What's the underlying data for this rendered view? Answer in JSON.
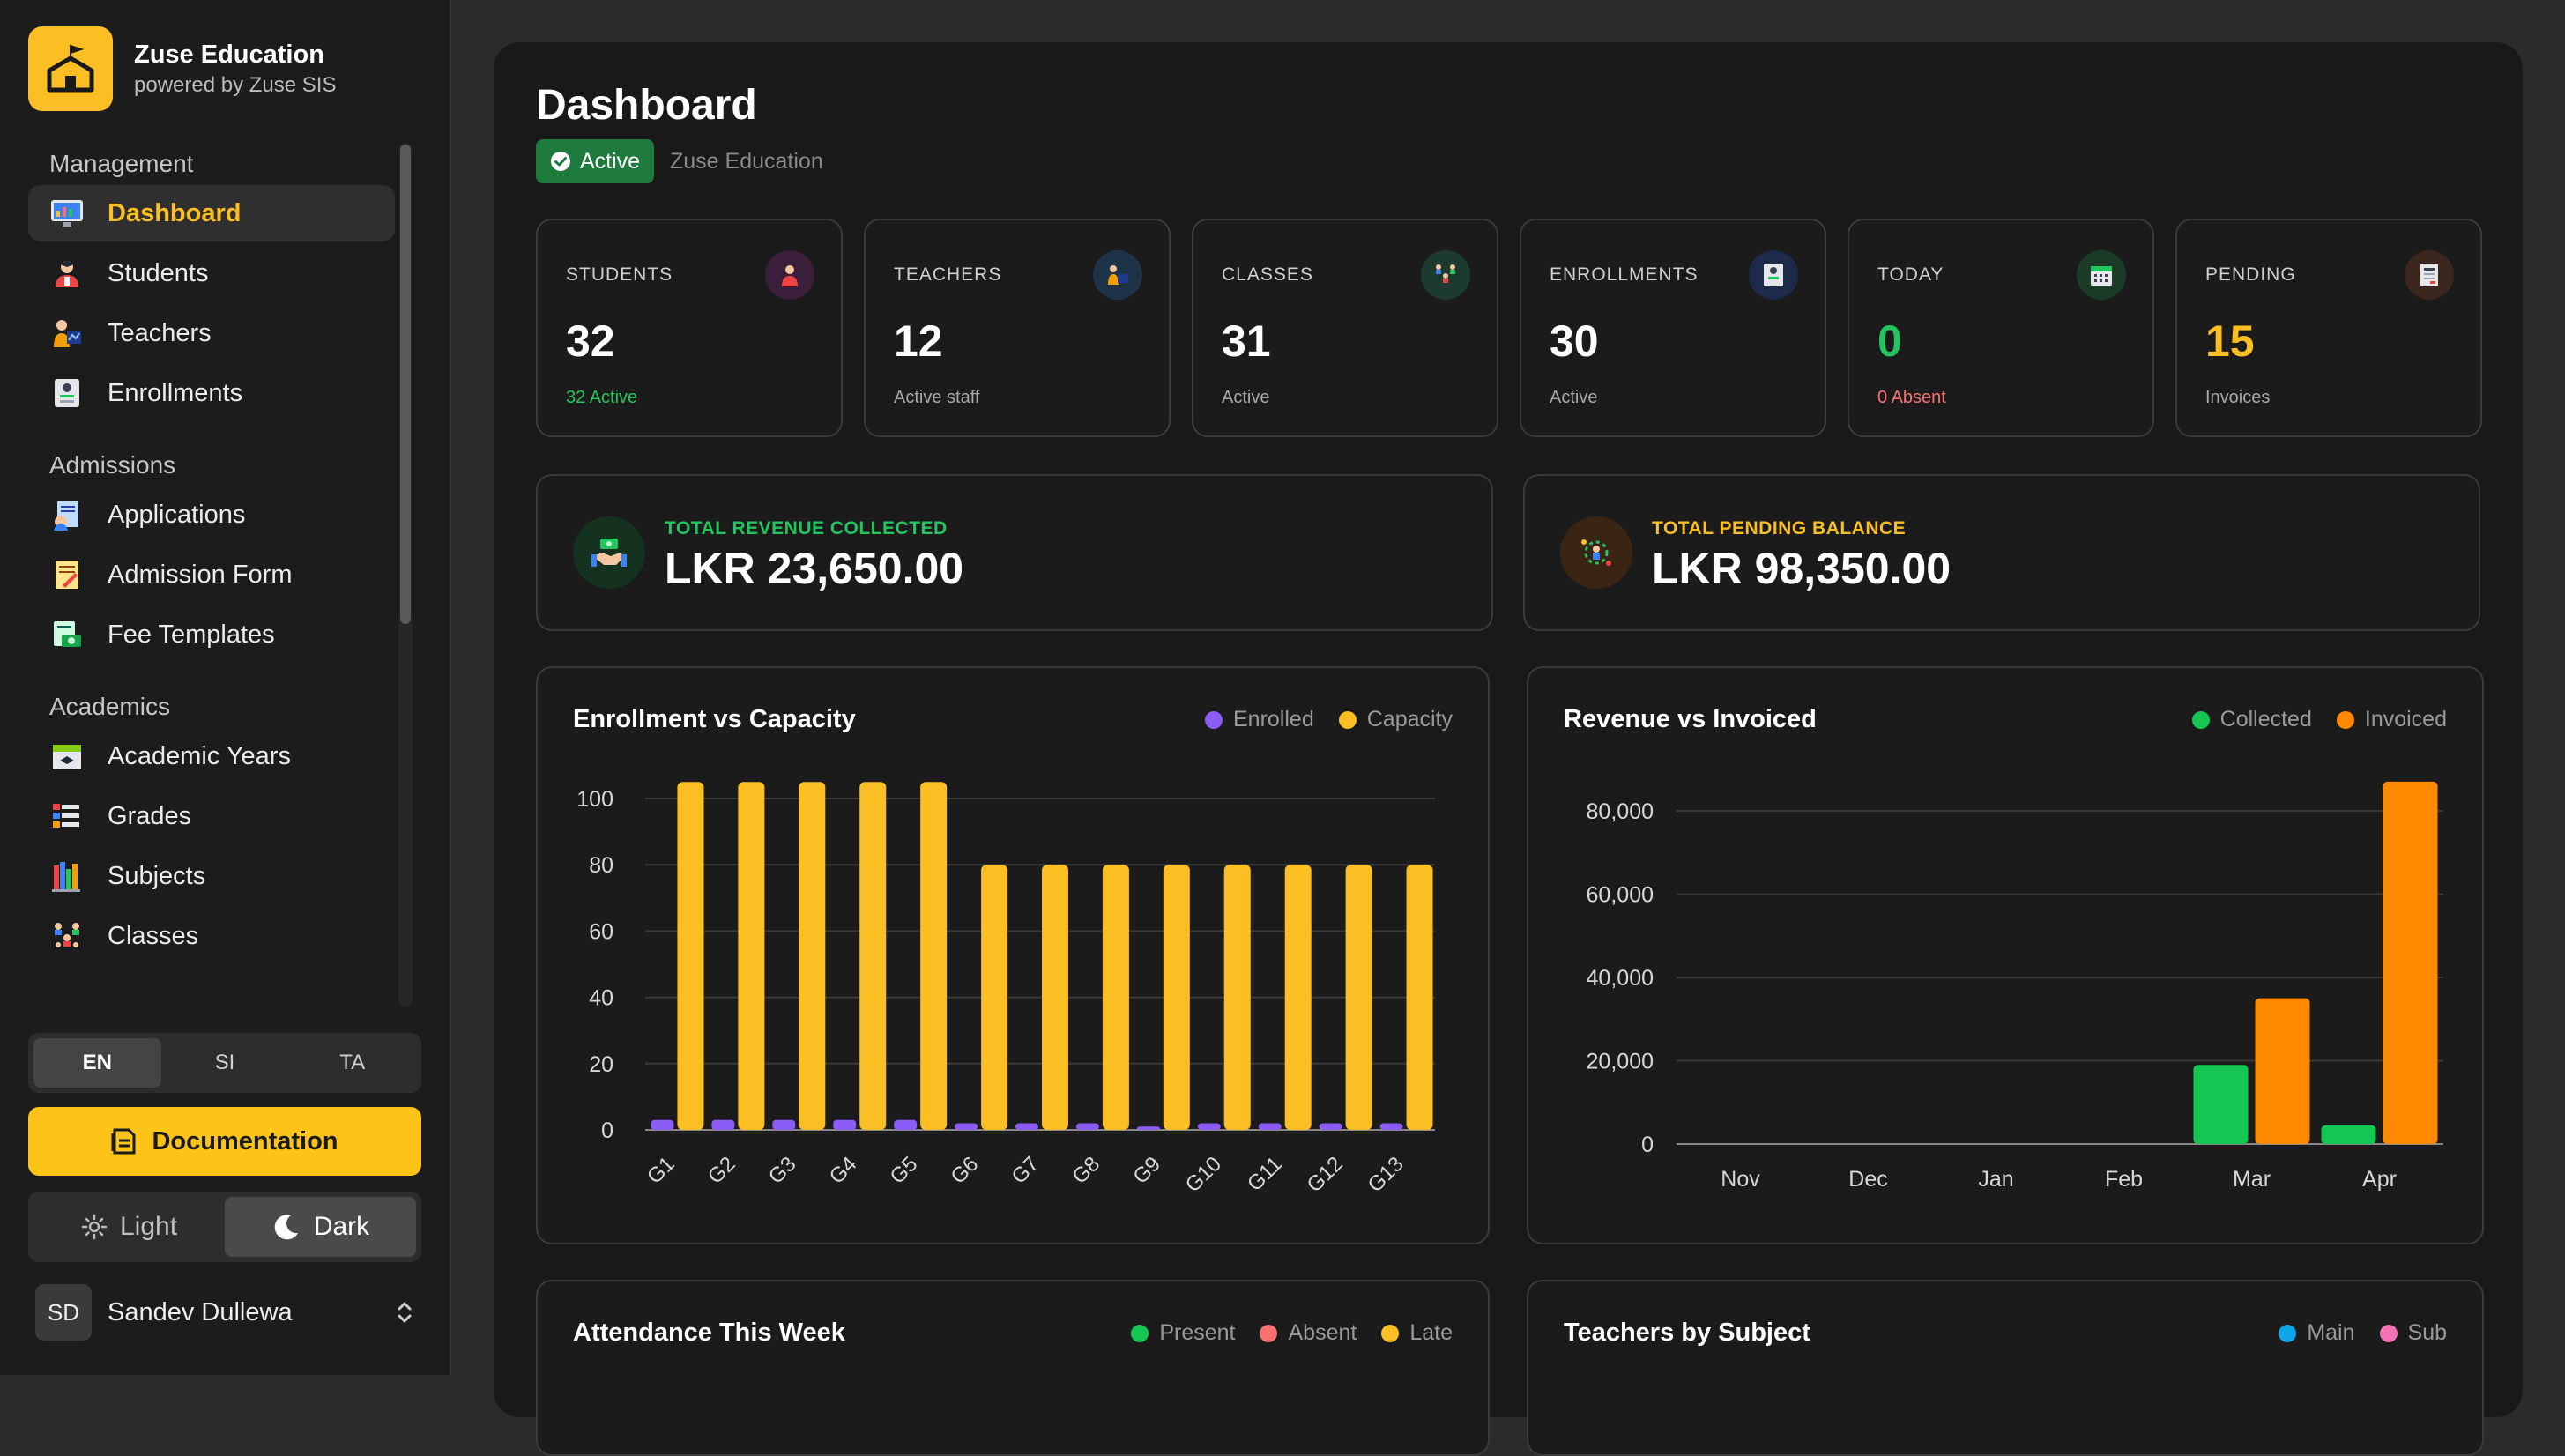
{
  "brand": {
    "name": "Zuse Education",
    "sub": "powered by Zuse SIS"
  },
  "nav": {
    "sections": [
      {
        "title": "Management",
        "items": [
          {
            "label": "Dashboard",
            "icon": "dashboard-icon",
            "active": true
          },
          {
            "label": "Students",
            "icon": "students-icon"
          },
          {
            "label": "Teachers",
            "icon": "teachers-icon"
          },
          {
            "label": "Enrollments",
            "icon": "enrollments-icon"
          }
        ]
      },
      {
        "title": "Admissions",
        "items": [
          {
            "label": "Applications",
            "icon": "applications-icon"
          },
          {
            "label": "Admission Form",
            "icon": "admission-form-icon"
          },
          {
            "label": "Fee Templates",
            "icon": "fee-templates-icon"
          }
        ]
      },
      {
        "title": "Academics",
        "items": [
          {
            "label": "Academic Years",
            "icon": "academic-years-icon"
          },
          {
            "label": "Grades",
            "icon": "grades-icon"
          },
          {
            "label": "Subjects",
            "icon": "subjects-icon"
          },
          {
            "label": "Classes",
            "icon": "classes-icon"
          }
        ]
      }
    ]
  },
  "lang": {
    "options": [
      "EN",
      "SI",
      "TA"
    ],
    "selected": "EN"
  },
  "documentation_label": "Documentation",
  "theme": {
    "light": "Light",
    "dark": "Dark",
    "selected": "Dark"
  },
  "user": {
    "initials": "SD",
    "name": "Sandev Dullewa"
  },
  "page": {
    "title": "Dashboard",
    "status": "Active",
    "org": "Zuse Education"
  },
  "stats": [
    {
      "label": "STUDENTS",
      "value": "32",
      "sub": "32 Active",
      "sub_color": "#22c55e",
      "value_color": "#ffffff",
      "icon": "students-stat-icon"
    },
    {
      "label": "TEACHERS",
      "value": "12",
      "sub": "Active staff",
      "sub_color": "#a8a8a8",
      "value_color": "#ffffff",
      "icon": "teachers-stat-icon"
    },
    {
      "label": "CLASSES",
      "value": "31",
      "sub": "Active",
      "sub_color": "#a8a8a8",
      "value_color": "#ffffff",
      "icon": "classes-stat-icon"
    },
    {
      "label": "ENROLLMENTS",
      "value": "30",
      "sub": "Active",
      "sub_color": "#a8a8a8",
      "value_color": "#ffffff",
      "icon": "enrollments-stat-icon"
    },
    {
      "label": "TODAY",
      "value": "0",
      "sub": "0 Absent",
      "sub_color": "#f87171",
      "value_color": "#22c55e",
      "icon": "calendar-icon"
    },
    {
      "label": "PENDING",
      "value": "15",
      "sub": "Invoices",
      "sub_color": "#a8a8a8",
      "value_color": "#fbbf24",
      "icon": "invoice-icon"
    }
  ],
  "finance": {
    "collected": {
      "label": "TOTAL REVENUE COLLECTED",
      "value": "LKR 23,650.00",
      "color": "#22c55e"
    },
    "pending": {
      "label": "TOTAL PENDING BALANCE",
      "value": "LKR 98,350.00",
      "color": "#fbbf24"
    }
  },
  "charts": {
    "enrollment": {
      "title": "Enrollment vs Capacity",
      "legend": [
        "Enrolled",
        "Capacity"
      ]
    },
    "revenue": {
      "title": "Revenue vs Invoiced",
      "legend": [
        "Collected",
        "Invoiced"
      ]
    },
    "attendance": {
      "title": "Attendance This Week",
      "legend": [
        "Present",
        "Absent",
        "Late"
      ]
    },
    "teachers": {
      "title": "Teachers by Subject",
      "legend": [
        "Main",
        "Sub"
      ]
    }
  },
  "colors": {
    "enrolled": "#8b5cf6",
    "capacity": "#fbbf24",
    "collected": "#16c653",
    "invoiced": "#ff8a00",
    "present": "#16c653",
    "absent": "#f87171",
    "late": "#fbbf24",
    "main": "#0ea5e9",
    "sub": "#f472b6"
  },
  "chart_data": [
    {
      "type": "bar",
      "title": "Enrollment vs Capacity",
      "categories": [
        "G1",
        "G2",
        "G3",
        "G4",
        "G5",
        "G6",
        "G7",
        "G8",
        "G9",
        "G10",
        "G11",
        "G12",
        "G13"
      ],
      "series": [
        {
          "name": "Enrolled",
          "values": [
            3,
            3,
            3,
            3,
            3,
            2,
            2,
            2,
            1,
            2,
            2,
            2,
            2
          ]
        },
        {
          "name": "Capacity",
          "values": [
            105,
            105,
            105,
            105,
            105,
            80,
            80,
            80,
            80,
            80,
            80,
            80,
            80
          ]
        }
      ],
      "yticks": [
        0,
        20,
        40,
        60,
        80,
        100
      ],
      "ylim": [
        0,
        105
      ]
    },
    {
      "type": "bar",
      "title": "Revenue vs Invoiced",
      "categories": [
        "Nov",
        "Dec",
        "Jan",
        "Feb",
        "Mar",
        "Apr"
      ],
      "series": [
        {
          "name": "Collected",
          "values": [
            0,
            0,
            0,
            0,
            19000,
            4500
          ]
        },
        {
          "name": "Invoiced",
          "values": [
            0,
            0,
            0,
            0,
            35000,
            87000
          ]
        }
      ],
      "yticks": [
        "0",
        "20,000",
        "40,000",
        "60,000",
        "80,000"
      ],
      "ytick_values": [
        0,
        20000,
        40000,
        60000,
        80000
      ],
      "ylim": [
        0,
        87000
      ]
    }
  ]
}
